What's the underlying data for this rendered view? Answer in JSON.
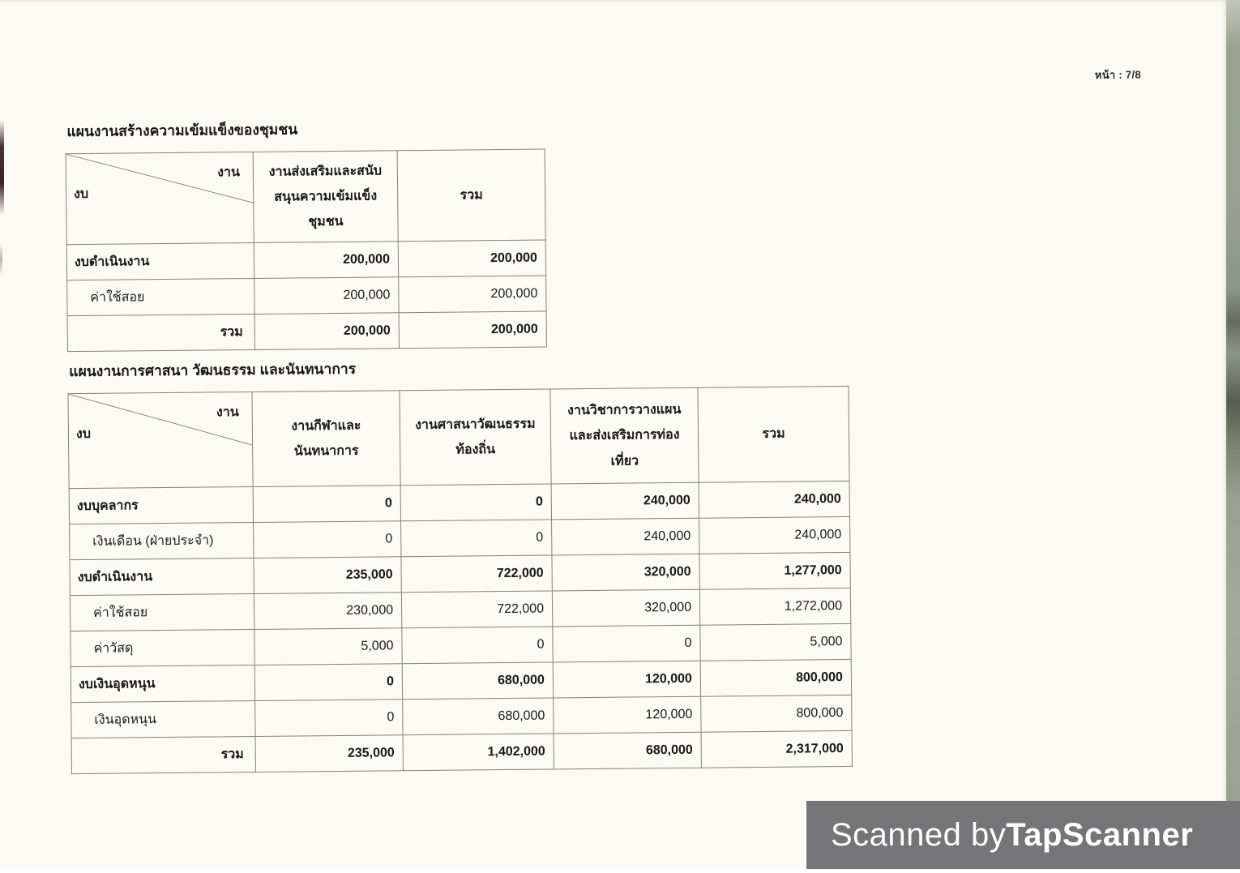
{
  "page": {
    "page_label": "หน้า : 7/8",
    "watermark_prefix": "Scanned by ",
    "watermark_brand": "TapScanner",
    "paper_color": "#fbfaf5",
    "watermark_bg": "#757577",
    "edge_strip_color": "#9aa193",
    "edge_mark_color": "#2c0e1a"
  },
  "tables": [
    {
      "title": "แผนงานสร้างความเข้มแข็งของชุมชน",
      "corner_top": "งาน",
      "corner_bottom": "งบ",
      "columns": [
        "งานส่งเสริมและสนับ\nสนุนความเข้มแข็ง\nชุมชน",
        "รวม"
      ],
      "rows": [
        {
          "label": "งบดำเนินงาน",
          "style": "category",
          "values": [
            "200,000",
            "200,000"
          ]
        },
        {
          "label": "ค่าใช้สอย",
          "style": "sub",
          "values": [
            "200,000",
            "200,000"
          ]
        },
        {
          "label": "รวม",
          "style": "total",
          "values": [
            "200,000",
            "200,000"
          ]
        }
      ]
    },
    {
      "title": "แผนงานการศาสนา วัฒนธรรม และนันทนาการ",
      "corner_top": "งาน",
      "corner_bottom": "งบ",
      "columns": [
        "งานกีฬาและ\nนันทนาการ",
        "งานศาสนาวัฒนธรรม\nท้องถิ่น",
        "งานวิชาการวางแผน\nและส่งเสริมการท่อง\nเที่ยว",
        "รวม"
      ],
      "rows": [
        {
          "label": "งบบุคลากร",
          "style": "category",
          "values": [
            "0",
            "0",
            "240,000",
            "240,000"
          ]
        },
        {
          "label": "เงินเดือน (ฝ่ายประจำ)",
          "style": "sub",
          "values": [
            "0",
            "0",
            "240,000",
            "240,000"
          ]
        },
        {
          "label": "งบดำเนินงาน",
          "style": "category",
          "values": [
            "235,000",
            "722,000",
            "320,000",
            "1,277,000"
          ]
        },
        {
          "label": "ค่าใช้สอย",
          "style": "sub",
          "values": [
            "230,000",
            "722,000",
            "320,000",
            "1,272,000"
          ]
        },
        {
          "label": "ค่าวัสดุ",
          "style": "sub",
          "values": [
            "5,000",
            "0",
            "0",
            "5,000"
          ]
        },
        {
          "label": "งบเงินอุดหนุน",
          "style": "category",
          "values": [
            "0",
            "680,000",
            "120,000",
            "800,000"
          ]
        },
        {
          "label": "เงินอุดหนุน",
          "style": "sub",
          "values": [
            "0",
            "680,000",
            "120,000",
            "800,000"
          ]
        },
        {
          "label": "รวม",
          "style": "total",
          "values": [
            "235,000",
            "1,402,000",
            "680,000",
            "2,317,000"
          ]
        }
      ]
    }
  ],
  "layout_note_col_widths": {
    "table1": [
      231,
      178,
      182
    ],
    "table2": [
      227,
      182,
      186,
      182,
      186
    ]
  }
}
